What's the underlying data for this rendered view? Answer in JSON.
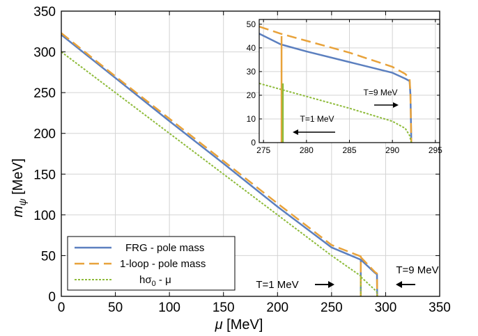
{
  "chart_data": [
    {
      "type": "line",
      "xlabel": "μ [MeV]",
      "ylabel": "m_ψ [MeV]",
      "xlim": [
        0,
        350
      ],
      "ylim": [
        0,
        350
      ],
      "xticks": [
        0,
        50,
        100,
        150,
        200,
        250,
        300,
        350
      ],
      "yticks": [
        0,
        50,
        100,
        150,
        200,
        250,
        300,
        350
      ],
      "tick_labels_x": [
        "0",
        "50",
        "100",
        "150",
        "200",
        "250",
        "300",
        "350"
      ],
      "tick_labels_y": [
        "0",
        "50",
        "100",
        "150",
        "200",
        "250",
        "300",
        "350"
      ],
      "grid": true,
      "legend_position": "bottom-left",
      "series": [
        {
          "name": "FRG - pole mass",
          "color": "#5b7fbf",
          "style": "solid",
          "points": [
            [
              0,
              321
            ],
            [
              50,
              268
            ],
            [
              100,
              215
            ],
            [
              150,
              163
            ],
            [
              200,
              110
            ],
            [
              250,
              60
            ],
            [
              277,
              45
            ],
            [
              277,
              0
            ],
            [
              277.01,
              45
            ],
            [
              290,
              29
            ],
            [
              292,
              27
            ],
            [
              292.2,
              0
            ]
          ]
        },
        {
          "name": "1-loop - pole mass",
          "color": "#e8a23a",
          "style": "dashed",
          "points": [
            [
              0,
              323
            ],
            [
              50,
              270
            ],
            [
              100,
              218
            ],
            [
              150,
              166
            ],
            [
              200,
              114
            ],
            [
              250,
              63
            ],
            [
              277,
              49
            ],
            [
              277,
              0
            ],
            [
              277.01,
              48
            ],
            [
              290,
              30
            ],
            [
              292,
              28
            ],
            [
              292.2,
              0
            ]
          ]
        },
        {
          "name": "hσ₀ - μ",
          "color": "#8ebb3a",
          "style": "dotted",
          "points": [
            [
              0,
              300
            ],
            [
              50,
              250
            ],
            [
              100,
              200
            ],
            [
              150,
              150
            ],
            [
              200,
              100
            ],
            [
              250,
              50
            ],
            [
              277,
              25
            ],
            [
              277,
              0
            ],
            [
              277.01,
              24
            ],
            [
              290,
              8
            ],
            [
              292,
              5
            ],
            [
              292.2,
              0
            ]
          ]
        }
      ],
      "legend": [
        "FRG - pole mass",
        "1-loop - pole mass",
        "hσ₀ - μ"
      ],
      "annotations": [
        "T=1 MeV",
        "T=9 MeV"
      ]
    },
    {
      "type": "line",
      "role": "inset",
      "xlim": [
        274.5,
        295.5
      ],
      "ylim": [
        0,
        52
      ],
      "xticks": [
        275,
        280,
        285,
        290,
        295
      ],
      "yticks": [
        0,
        10,
        20,
        30,
        40,
        50
      ],
      "tick_labels_x": [
        "275",
        "280",
        "285",
        "290",
        "295"
      ],
      "tick_labels_y": [
        "0",
        "10",
        "20",
        "30",
        "40",
        "50"
      ],
      "grid": true,
      "series": [
        {
          "name": "FRG - pole mass",
          "color": "#5b7fbf",
          "style": "solid",
          "points": [
            [
              274.5,
              46
            ],
            [
              277,
              41.5
            ],
            [
              280,
              38.5
            ],
            [
              285,
              34
            ],
            [
              290,
              29.5
            ],
            [
              291.5,
              27
            ],
            [
              292,
              26
            ],
            [
              292.1,
              20
            ],
            [
              292.2,
              0
            ]
          ]
        },
        {
          "name": "1-loop - pole mass",
          "color": "#e8a23a",
          "style": "dashed",
          "points": [
            [
              274.5,
              49
            ],
            [
              277,
              46
            ],
            [
              280,
              43
            ],
            [
              285,
              38
            ],
            [
              290,
              32
            ],
            [
              291.5,
              29
            ],
            [
              292,
              27
            ],
            [
              292.1,
              20
            ],
            [
              292.2,
              0
            ]
          ]
        },
        {
          "name": "hσ₀ - μ",
          "color": "#8ebb3a",
          "style": "dotted",
          "points": [
            [
              274.5,
              25
            ],
            [
              277,
              22.5
            ],
            [
              280,
              19.5
            ],
            [
              285,
              14.5
            ],
            [
              290,
              9
            ],
            [
              291.5,
              6
            ],
            [
              292,
              3
            ],
            [
              292.2,
              0
            ]
          ]
        },
        {
          "name": "T=1 MeV",
          "color": "#e8a23a",
          "style": "solid",
          "points": [
            [
              277.1,
              45
            ],
            [
              277.1,
              0
            ]
          ]
        },
        {
          "name": "T=1 MeV green",
          "color": "#8ebb3a",
          "style": "solid",
          "points": [
            [
              277.25,
              25
            ],
            [
              277.25,
              0
            ]
          ]
        }
      ],
      "annotations": [
        "T=9 MeV",
        "T=1 MeV"
      ]
    }
  ],
  "labels": {
    "xlabel": "μ [MeV]",
    "ylabel_main": "m",
    "ylabel_sub": "ψ",
    "ylabel_unit": " [MeV]",
    "legend_frg": "FRG - pole mass",
    "legend_1loop": "1-loop - pole mass",
    "legend_hsigma_pre": "hσ",
    "legend_hsigma_sub": "0",
    "legend_hsigma_post": " - μ",
    "annot_main_t1": "T=1 MeV",
    "annot_main_t9": "T=9 MeV",
    "annot_inset_t9": "T=9 MeV",
    "annot_inset_t1": "T=1 MeV"
  }
}
